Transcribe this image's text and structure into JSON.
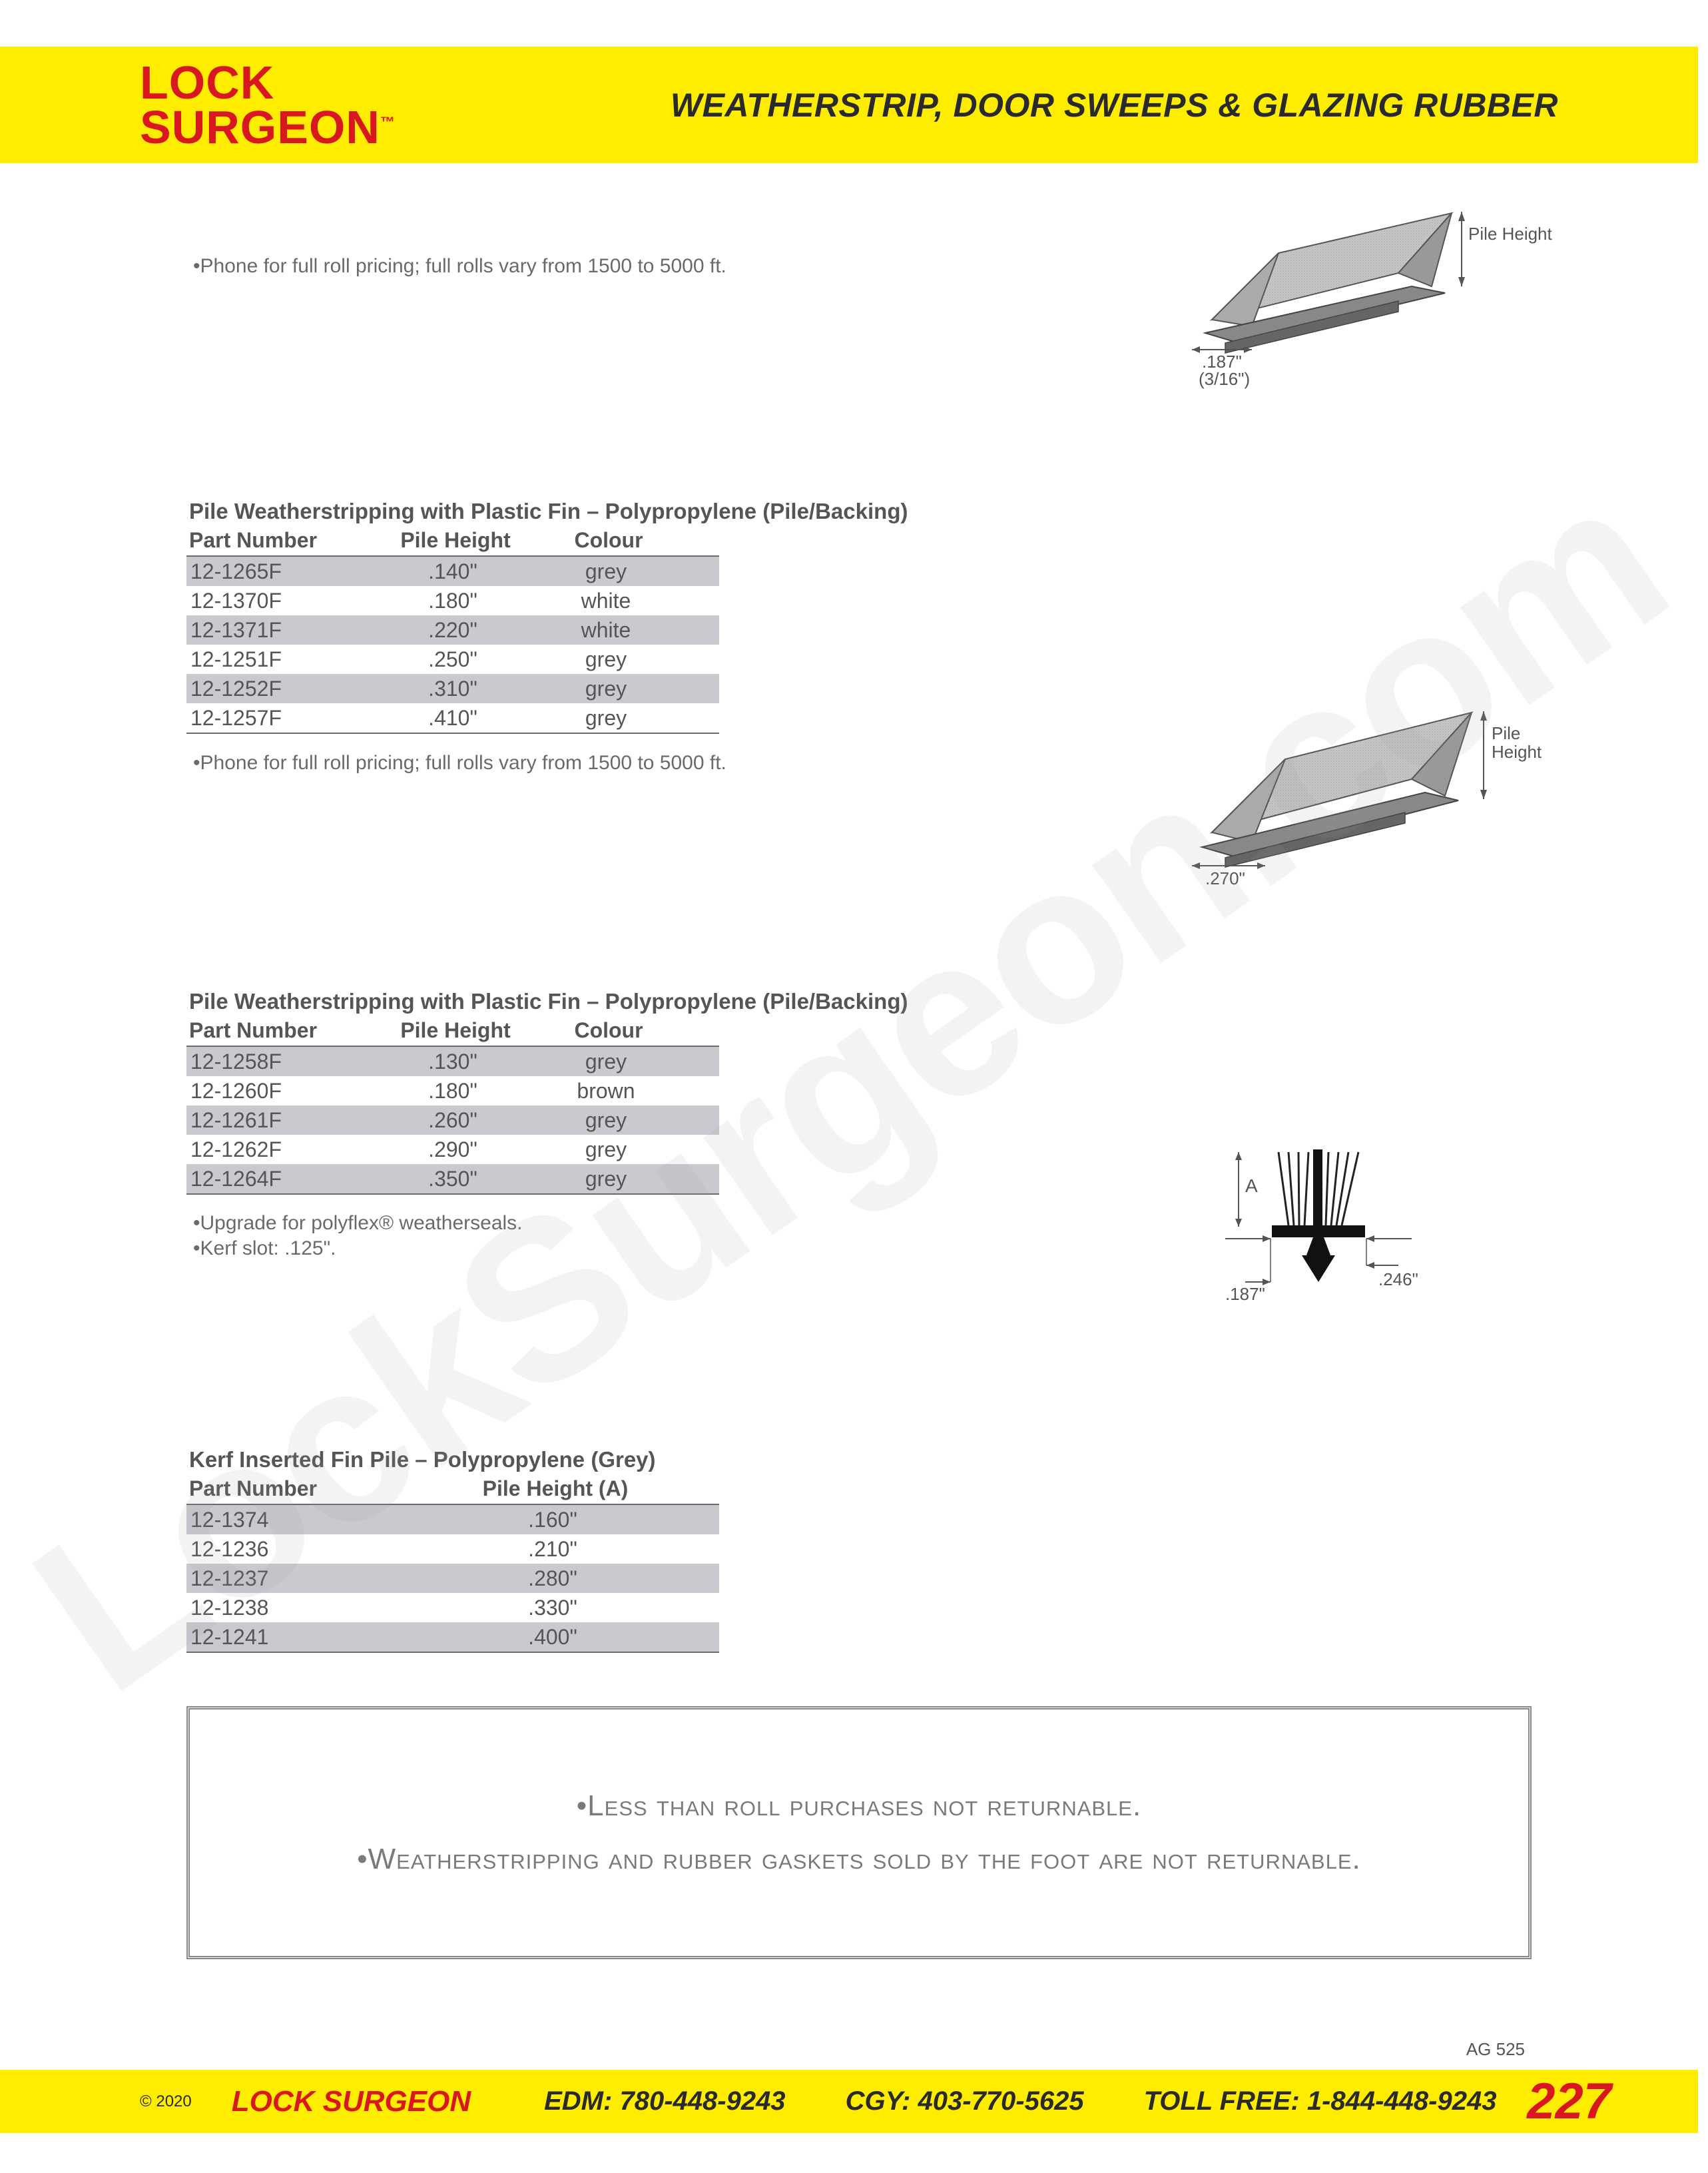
{
  "watermark": "LockSurgeon.com",
  "header": {
    "logo_top": "LOCK",
    "logo_bot": "SURGEON",
    "tm": "™",
    "title": "WEATHERSTRIP, DOOR SWEEPS & GLAZING RUBBER"
  },
  "section1": {
    "note": "•Phone for full roll pricing; full rolls vary from 1500 to 5000 ft.",
    "diagram": {
      "width_label": ".187\"",
      "width_sub": "(3/16\")",
      "height_label": "Pile Height"
    },
    "table_title": "Pile Weatherstripping with Plastic Fin – Polypropylene (Pile/Backing)",
    "headers": [
      "Part Number",
      "Pile Height",
      "Colour"
    ],
    "rows": [
      {
        "pn": "12-1265F",
        "ph": ".140\"",
        "c": "grey",
        "alt": true
      },
      {
        "pn": "12-1370F",
        "ph": ".180\"",
        "c": "white",
        "alt": false
      },
      {
        "pn": "12-1371F",
        "ph": ".220\"",
        "c": "white",
        "alt": true
      },
      {
        "pn": "12-1251F",
        "ph": ".250\"",
        "c": "grey",
        "alt": false
      },
      {
        "pn": "12-1252F",
        "ph": ".310\"",
        "c": "grey",
        "alt": true
      },
      {
        "pn": "12-1257F",
        "ph": ".410\"",
        "c": "grey",
        "alt": false
      }
    ]
  },
  "section2": {
    "note": "•Phone for full roll pricing; full rolls vary from 1500 to 5000 ft.",
    "diagram": {
      "width_label": ".270\"",
      "height_label": "Pile\nHeight"
    },
    "table_title": "Pile Weatherstripping with Plastic Fin – Polypropylene (Pile/Backing)",
    "headers": [
      "Part Number",
      "Pile Height",
      "Colour"
    ],
    "rows": [
      {
        "pn": "12-1258F",
        "ph": ".130\"",
        "c": "grey",
        "alt": true
      },
      {
        "pn": "12-1260F",
        "ph": ".180\"",
        "c": "brown",
        "alt": false
      },
      {
        "pn": "12-1261F",
        "ph": ".260\"",
        "c": "grey",
        "alt": true
      },
      {
        "pn": "12-1262F",
        "ph": ".290\"",
        "c": "grey",
        "alt": false
      },
      {
        "pn": "12-1264F",
        "ph": ".350\"",
        "c": "grey",
        "alt": true
      }
    ]
  },
  "section3": {
    "note1": "•Upgrade for polyflex® weatherseals.",
    "note2": "•Kerf slot: .125\".",
    "diagram": {
      "a_label": "A",
      "left_dim": ".187\"",
      "right_dim": ".246\""
    },
    "table_title": "Kerf Inserted Fin Pile – Polypropylene (Grey)",
    "headers": [
      "Part Number",
      "Pile Height (A)"
    ],
    "rows": [
      {
        "pn": "12-1374",
        "ph": ".160\"",
        "alt": true
      },
      {
        "pn": "12-1236",
        "ph": ".210\"",
        "alt": false
      },
      {
        "pn": "12-1237",
        "ph": ".280\"",
        "alt": true
      },
      {
        "pn": "12-1238",
        "ph": ".330\"",
        "alt": false
      },
      {
        "pn": "12-1241",
        "ph": ".400\"",
        "alt": true
      }
    ]
  },
  "notice": {
    "line1": "•Less than roll purchases not returnable.",
    "line2": "•Weatherstripping and rubber gaskets sold by the foot are not returnable."
  },
  "ag_code": "AG 525",
  "footer": {
    "copyright": "© 2020",
    "brand": "LOCK SURGEON",
    "edm_label": "EDM:",
    "edm": "780-448-9243",
    "cgy_label": "CGY:",
    "cgy": "403-770-5625",
    "tf_label": "TOLL FREE:",
    "tf": "1-844-448-9243",
    "page": "227"
  },
  "colors": {
    "yellow": "#ffed00",
    "red": "#d8171e",
    "grey_text": "#5d5d5d",
    "row_alt": "#c9c9d0"
  }
}
